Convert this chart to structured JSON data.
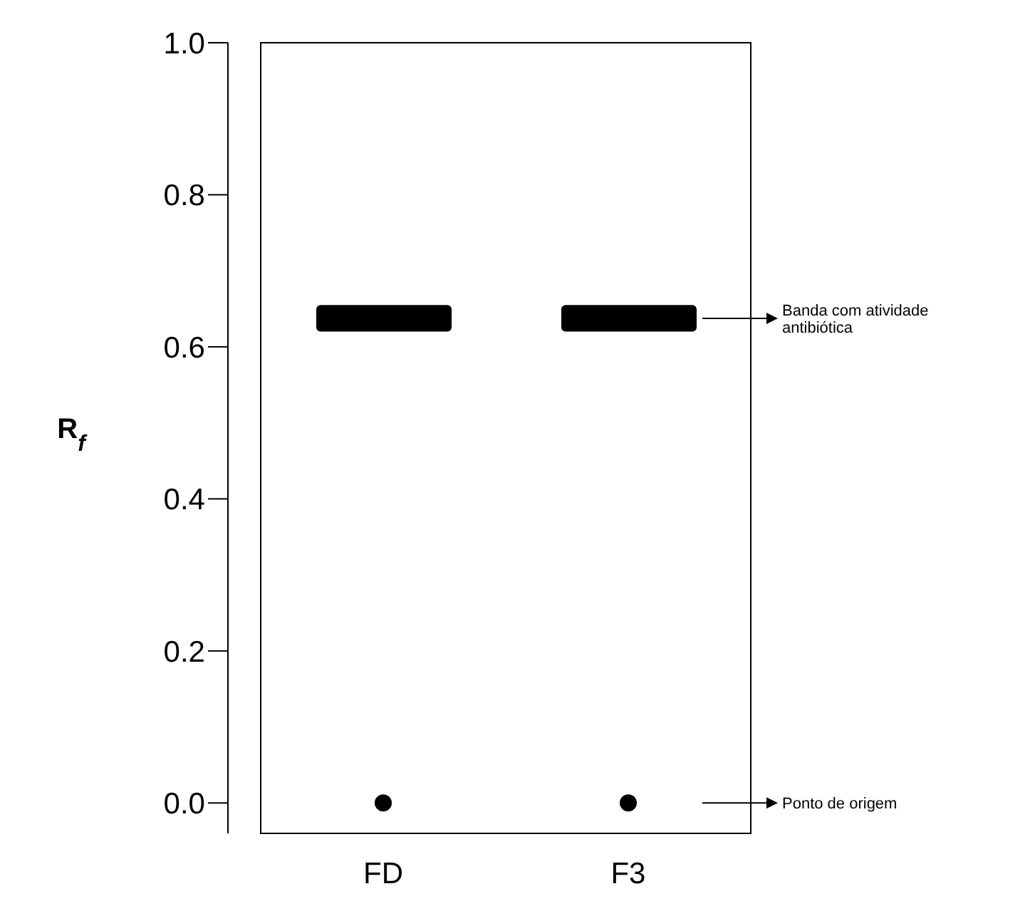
{
  "chart_data": {
    "type": "scatter",
    "categories": [
      "FD",
      "F3"
    ],
    "ylabel": "R$_{f}$",
    "ylim": [
      -0.04,
      1.0
    ],
    "yticks": [
      {
        "value": 0,
        "label": "0.0"
      },
      0.2,
      0.4,
      0.6,
      0.8,
      {
        "value": 1,
        "label": "1.0"
      }
    ],
    "series": [
      {
        "type": "bar",
        "color": "#000000",
        "base": [
          0.62,
          0.62
        ],
        "values": [
          0.035,
          0.035
        ]
      },
      {
        "marker": "circle",
        "color": "#000000",
        "values": [
          0,
          0
        ]
      }
    ],
    "annotations": [
      "Banda com atividade antibiótica",
      "Ponto de origem"
    ]
  }
}
